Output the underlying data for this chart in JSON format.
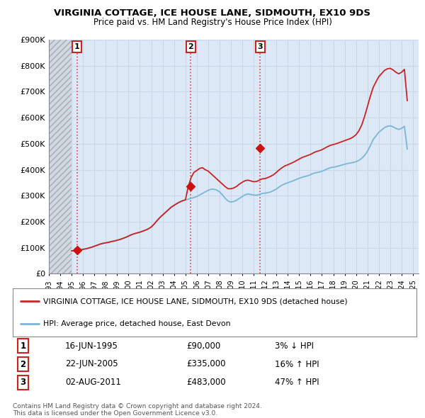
{
  "title": "VIRGINIA COTTAGE, ICE HOUSE LANE, SIDMOUTH, EX10 9DS",
  "subtitle": "Price paid vs. HM Land Registry's House Price Index (HPI)",
  "legend_property": "VIRGINIA COTTAGE, ICE HOUSE LANE, SIDMOUTH, EX10 9DS (detached house)",
  "legend_hpi": "HPI: Average price, detached house, East Devon",
  "ylim": [
    0,
    900000
  ],
  "yticks": [
    0,
    100000,
    200000,
    300000,
    400000,
    500000,
    600000,
    700000,
    800000,
    900000
  ],
  "ytick_labels": [
    "£0",
    "£100K",
    "£200K",
    "£300K",
    "£400K",
    "£500K",
    "£600K",
    "£700K",
    "£800K",
    "£900K"
  ],
  "xlim_start": 1993.0,
  "xlim_end": 2025.5,
  "hpi_color": "#7ab6d8",
  "property_color": "#cc2222",
  "sale_marker_color": "#cc1111",
  "vline_color": "#dd3333",
  "hatch_color": "#bbbbbb",
  "background_color": "#dce8f5",
  "grid_color": "#c8d8e8",
  "sales": [
    {
      "num": 1,
      "year": 1995.46,
      "price": 90000,
      "date": "16-JUN-1995",
      "price_str": "£90,000",
      "hpi_pct": "3% ↓ HPI"
    },
    {
      "num": 2,
      "year": 2005.47,
      "price": 335000,
      "date": "22-JUN-2005",
      "price_str": "£335,000",
      "hpi_pct": "16% ↑ HPI"
    },
    {
      "num": 3,
      "year": 2011.58,
      "price": 483000,
      "date": "02-AUG-2011",
      "price_str": "£483,000",
      "hpi_pct": "47% ↑ HPI"
    }
  ],
  "copyright": "Contains HM Land Registry data © Crown copyright and database right 2024.\nThis data is licensed under the Open Government Licence v3.0.",
  "hpi_years": [
    1995.0,
    1995.25,
    1995.5,
    1995.75,
    1996.0,
    1996.25,
    1996.5,
    1996.75,
    1997.0,
    1997.25,
    1997.5,
    1997.75,
    1998.0,
    1998.25,
    1998.5,
    1998.75,
    1999.0,
    1999.25,
    1999.5,
    1999.75,
    2000.0,
    2000.25,
    2000.5,
    2000.75,
    2001.0,
    2001.25,
    2001.5,
    2001.75,
    2002.0,
    2002.25,
    2002.5,
    2002.75,
    2003.0,
    2003.25,
    2003.5,
    2003.75,
    2004.0,
    2004.25,
    2004.5,
    2004.75,
    2005.0,
    2005.25,
    2005.5,
    2005.75,
    2006.0,
    2006.25,
    2006.5,
    2006.75,
    2007.0,
    2007.25,
    2007.5,
    2007.75,
    2008.0,
    2008.25,
    2008.5,
    2008.75,
    2009.0,
    2009.25,
    2009.5,
    2009.75,
    2010.0,
    2010.25,
    2010.5,
    2010.75,
    2011.0,
    2011.25,
    2011.5,
    2011.75,
    2012.0,
    2012.25,
    2012.5,
    2012.75,
    2013.0,
    2013.25,
    2013.5,
    2013.75,
    2014.0,
    2014.25,
    2014.5,
    2014.75,
    2015.0,
    2015.25,
    2015.5,
    2015.75,
    2016.0,
    2016.25,
    2016.5,
    2016.75,
    2017.0,
    2017.25,
    2017.5,
    2017.75,
    2018.0,
    2018.25,
    2018.5,
    2018.75,
    2019.0,
    2019.25,
    2019.5,
    2019.75,
    2020.0,
    2020.25,
    2020.5,
    2020.75,
    2021.0,
    2021.25,
    2021.5,
    2021.75,
    2022.0,
    2022.25,
    2022.5,
    2022.75,
    2023.0,
    2023.25,
    2023.5,
    2023.75,
    2024.0,
    2024.25,
    2024.5
  ],
  "hpi_values": [
    88000,
    89000,
    90000,
    91000,
    94000,
    96000,
    99000,
    102000,
    106000,
    110000,
    114000,
    117000,
    119000,
    121000,
    124000,
    126000,
    129000,
    132000,
    136000,
    140000,
    145000,
    150000,
    154000,
    157000,
    160000,
    164000,
    168000,
    173000,
    180000,
    191000,
    204000,
    216000,
    226000,
    236000,
    246000,
    256000,
    263000,
    270000,
    276000,
    281000,
    284000,
    287000,
    290000,
    293000,
    297000,
    303000,
    309000,
    315000,
    321000,
    325000,
    325000,
    322000,
    315000,
    304000,
    290000,
    280000,
    276000,
    278000,
    283000,
    290000,
    297000,
    304000,
    307000,
    305000,
    303000,
    302000,
    305000,
    309000,
    310000,
    312000,
    315000,
    320000,
    326000,
    334000,
    341000,
    346000,
    350000,
    354000,
    358000,
    363000,
    367000,
    371000,
    374000,
    377000,
    381000,
    386000,
    389000,
    391000,
    394000,
    399000,
    404000,
    408000,
    410000,
    412000,
    415000,
    418000,
    421000,
    424000,
    426000,
    428000,
    431000,
    436000,
    444000,
    455000,
    471000,
    492000,
    516000,
    530000,
    544000,
    553000,
    562000,
    567000,
    569000,
    565000,
    559000,
    555000,
    559000,
    567000,
    480000
  ],
  "prop_years": [
    1995.0,
    1995.25,
    1995.5,
    1995.75,
    1996.0,
    1996.25,
    1996.5,
    1996.75,
    1997.0,
    1997.25,
    1997.5,
    1997.75,
    1998.0,
    1998.25,
    1998.5,
    1998.75,
    1999.0,
    1999.25,
    1999.5,
    1999.75,
    2000.0,
    2000.25,
    2000.5,
    2000.75,
    2001.0,
    2001.25,
    2001.5,
    2001.75,
    2002.0,
    2002.25,
    2002.5,
    2002.75,
    2003.0,
    2003.25,
    2003.5,
    2003.75,
    2004.0,
    2004.25,
    2004.5,
    2004.75,
    2005.0,
    2005.25,
    2005.5,
    2005.75,
    2006.0,
    2006.25,
    2006.5,
    2006.75,
    2007.0,
    2007.25,
    2007.5,
    2007.75,
    2008.0,
    2008.25,
    2008.5,
    2008.75,
    2009.0,
    2009.25,
    2009.5,
    2009.75,
    2010.0,
    2010.25,
    2010.5,
    2010.75,
    2011.0,
    2011.25,
    2011.5,
    2011.75,
    2012.0,
    2012.25,
    2012.5,
    2012.75,
    2013.0,
    2013.25,
    2013.5,
    2013.75,
    2014.0,
    2014.25,
    2014.5,
    2014.75,
    2015.0,
    2015.25,
    2015.5,
    2015.75,
    2016.0,
    2016.25,
    2016.5,
    2016.75,
    2017.0,
    2017.25,
    2017.5,
    2017.75,
    2018.0,
    2018.25,
    2018.5,
    2018.75,
    2019.0,
    2019.25,
    2019.5,
    2019.75,
    2020.0,
    2020.25,
    2020.5,
    2020.75,
    2021.0,
    2021.25,
    2021.5,
    2021.75,
    2022.0,
    2022.25,
    2022.5,
    2022.75,
    2023.0,
    2023.25,
    2023.5,
    2023.75,
    2024.0,
    2024.25,
    2024.5
  ],
  "prop_values": [
    88000,
    89000,
    90000,
    91000,
    94000,
    96000,
    99000,
    102000,
    106000,
    110000,
    114000,
    117000,
    119000,
    121000,
    124000,
    126000,
    129000,
    132000,
    136000,
    140000,
    145000,
    150000,
    154000,
    157000,
    160000,
    164000,
    168000,
    173000,
    180000,
    191000,
    204000,
    216000,
    226000,
    236000,
    246000,
    256000,
    263000,
    270000,
    276000,
    281000,
    284000,
    335000,
    370000,
    390000,
    397000,
    405000,
    408000,
    400000,
    395000,
    385000,
    375000,
    365000,
    355000,
    345000,
    335000,
    327000,
    327000,
    330000,
    336000,
    345000,
    352000,
    358000,
    360000,
    357000,
    354000,
    355000,
    360000,
    365000,
    366000,
    370000,
    375000,
    381000,
    390000,
    400000,
    408000,
    415000,
    419000,
    424000,
    429000,
    435000,
    441000,
    447000,
    451000,
    455000,
    459000,
    465000,
    470000,
    473000,
    477000,
    483000,
    489000,
    494000,
    497000,
    500000,
    504000,
    508000,
    512000,
    516000,
    520000,
    526000,
    535000,
    550000,
    572000,
    605000,
    643000,
    682000,
    716000,
    738000,
    758000,
    770000,
    782000,
    788000,
    790000,
    784000,
    775000,
    769000,
    775000,
    786000,
    666000
  ]
}
